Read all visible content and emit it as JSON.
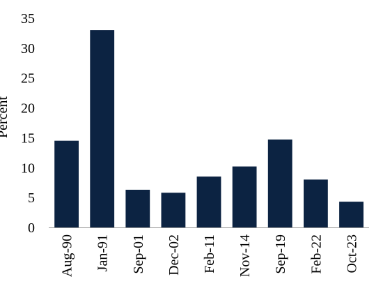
{
  "chart_data": {
    "type": "bar",
    "title": "",
    "xlabel": "",
    "ylabel": "Percent",
    "categories": [
      "Aug-90",
      "Jan-91",
      "Sep-01",
      "Dec-02",
      "Feb-11",
      "Nov-14",
      "Sep-19",
      "Feb-22",
      "Oct-23"
    ],
    "values": [
      14.5,
      33.0,
      6.3,
      5.8,
      8.5,
      10.2,
      14.7,
      8.0,
      4.3
    ],
    "ylim": [
      0,
      35
    ],
    "yticks": [
      0,
      5,
      10,
      15,
      20,
      25,
      30,
      35
    ],
    "grid": false,
    "legend": "none",
    "bar_color": "#0c2342"
  }
}
